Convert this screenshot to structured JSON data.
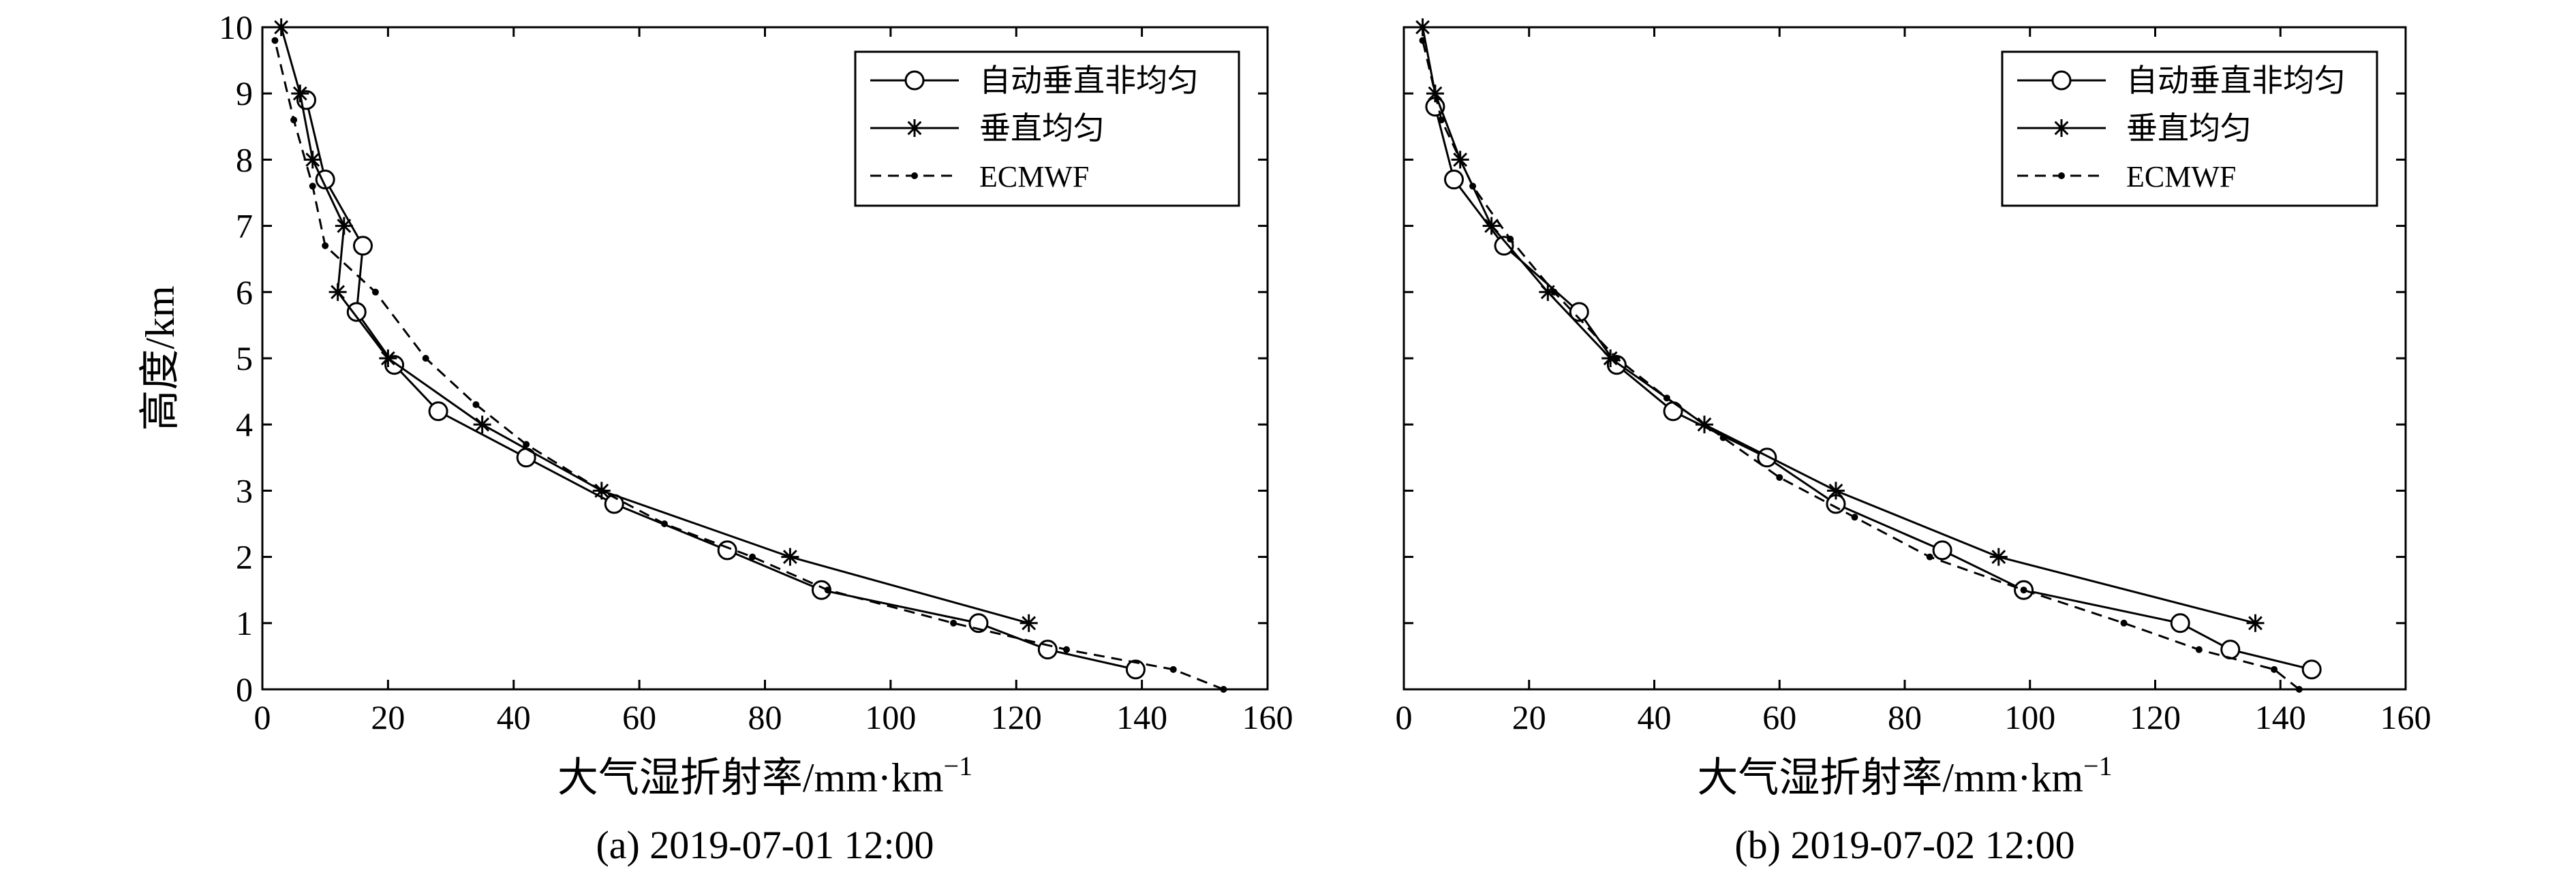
{
  "chart_data": [
    {
      "type": "line",
      "panel": "a",
      "caption": "(a) 2019-07-01 12:00",
      "xlabel_prefix": "大气湿折射率/mm·km",
      "xlabel_sup": "−1",
      "ylabel": "高度/km",
      "xlim": [
        0,
        160
      ],
      "ylim": [
        0,
        10
      ],
      "xticks": [
        "0",
        "20",
        "40",
        "60",
        "80",
        "100",
        "120",
        "140",
        "160"
      ],
      "yticks": [
        "0",
        "1",
        "2",
        "3",
        "4",
        "5",
        "6",
        "7",
        "8",
        "9",
        "10"
      ],
      "grid": false,
      "legend_position": "top-right",
      "series": [
        {
          "name": "自动垂直非均匀",
          "marker": "circle",
          "style": "solid",
          "points": [
            [
              139,
              0.3
            ],
            [
              125,
              0.6
            ],
            [
              114,
              1.0
            ],
            [
              89,
              1.5
            ],
            [
              74,
              2.1
            ],
            [
              56,
              2.8
            ],
            [
              42,
              3.5
            ],
            [
              28,
              4.2
            ],
            [
              21,
              4.9
            ],
            [
              15,
              5.7
            ],
            [
              16,
              6.7
            ],
            [
              10,
              7.7
            ],
            [
              7,
              8.9
            ]
          ]
        },
        {
          "name": "垂直均匀",
          "marker": "star",
          "style": "solid",
          "points": [
            [
              122,
              1.0
            ],
            [
              84,
              2.0
            ],
            [
              54,
              3.0
            ],
            [
              35,
              4.0
            ],
            [
              20,
              5.0
            ],
            [
              12,
              6.0
            ],
            [
              13,
              7.0
            ],
            [
              8,
              8.0
            ],
            [
              6,
              9.0
            ],
            [
              3,
              10.0
            ]
          ]
        },
        {
          "name": "ECMWF",
          "marker": "dot",
          "style": "dashed",
          "points": [
            [
              153,
              0.0
            ],
            [
              145,
              0.3
            ],
            [
              128,
              0.6
            ],
            [
              110,
              1.0
            ],
            [
              90,
              1.5
            ],
            [
              78,
              2.0
            ],
            [
              64,
              2.5
            ],
            [
              54,
              3.0
            ],
            [
              42,
              3.7
            ],
            [
              34,
              4.3
            ],
            [
              26,
              5.0
            ],
            [
              18,
              6.0
            ],
            [
              10,
              6.7
            ],
            [
              8,
              7.6
            ],
            [
              5,
              8.6
            ],
            [
              2,
              9.8
            ]
          ]
        }
      ]
    },
    {
      "type": "line",
      "panel": "b",
      "caption": "(b) 2019-07-02 12:00",
      "xlabel_prefix": "大气湿折射率/mm·km",
      "xlabel_sup": "−1",
      "ylabel": "",
      "xlim": [
        0,
        160
      ],
      "ylim": [
        0,
        10
      ],
      "xticks": [
        "0",
        "20",
        "40",
        "60",
        "80",
        "100",
        "120",
        "140",
        "160"
      ],
      "yticks": [],
      "grid": false,
      "legend_position": "top-right",
      "series": [
        {
          "name": "自动垂直非均匀",
          "marker": "circle",
          "style": "solid",
          "points": [
            [
              145,
              0.3
            ],
            [
              132,
              0.6
            ],
            [
              124,
              1.0
            ],
            [
              99,
              1.5
            ],
            [
              86,
              2.1
            ],
            [
              69,
              2.8
            ],
            [
              58,
              3.5
            ],
            [
              43,
              4.2
            ],
            [
              34,
              4.9
            ],
            [
              28,
              5.7
            ],
            [
              16,
              6.7
            ],
            [
              8,
              7.7
            ],
            [
              5,
              8.8
            ]
          ]
        },
        {
          "name": "垂直均匀",
          "marker": "star",
          "style": "solid",
          "points": [
            [
              136,
              1.0
            ],
            [
              95,
              2.0
            ],
            [
              69,
              3.0
            ],
            [
              48,
              4.0
            ],
            [
              33,
              5.0
            ],
            [
              23,
              6.0
            ],
            [
              14,
              7.0
            ],
            [
              9,
              8.0
            ],
            [
              5,
              9.0
            ],
            [
              3,
              10.0
            ]
          ]
        },
        {
          "name": "ECMWF",
          "marker": "dot",
          "style": "dashed",
          "points": [
            [
              143,
              0.0
            ],
            [
              139,
              0.3
            ],
            [
              127,
              0.6
            ],
            [
              115,
              1.0
            ],
            [
              99,
              1.5
            ],
            [
              84,
              2.0
            ],
            [
              72,
              2.6
            ],
            [
              60,
              3.2
            ],
            [
              51,
              3.8
            ],
            [
              42,
              4.4
            ],
            [
              34,
              5.0
            ],
            [
              24,
              6.0
            ],
            [
              17,
              6.8
            ],
            [
              11,
              7.6
            ],
            [
              6,
              8.6
            ],
            [
              3,
              9.8
            ]
          ]
        }
      ]
    }
  ]
}
